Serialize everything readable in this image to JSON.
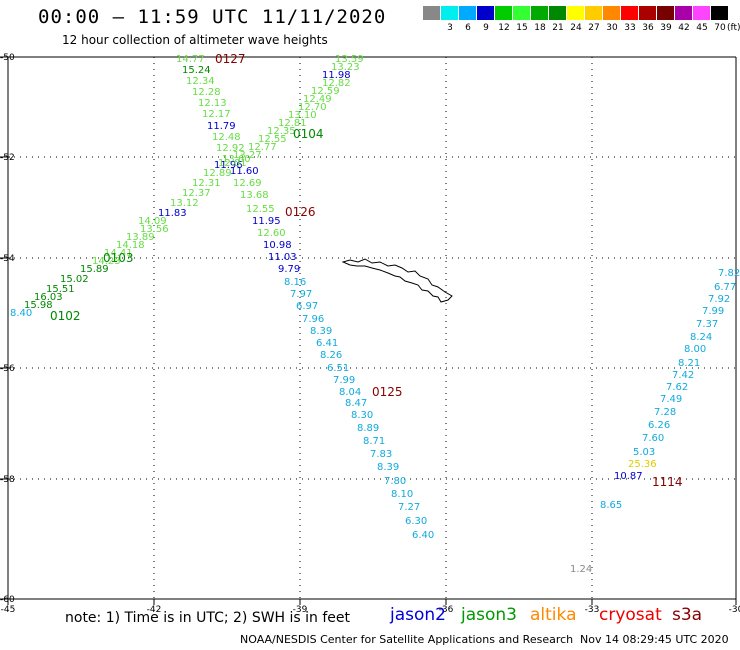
{
  "header": {
    "title": "00:00 — 11:59 UTC 11/11/2020",
    "subtitle": "12 hour collection of altimeter wave heights"
  },
  "legend": {
    "unit": "(ft)",
    "bins": [
      {
        "label": "",
        "color": "#888888"
      },
      {
        "label": "3",
        "color": "#00eeee"
      },
      {
        "label": "6",
        "color": "#00aaff"
      },
      {
        "label": "9",
        "color": "#0000cc"
      },
      {
        "label": "12",
        "color": "#00cc00"
      },
      {
        "label": "15",
        "color": "#33ff33"
      },
      {
        "label": "18",
        "color": "#00aa00"
      },
      {
        "label": "21",
        "color": "#008800"
      },
      {
        "label": "24",
        "color": "#ffff00"
      },
      {
        "label": "27",
        "color": "#ffcc00"
      },
      {
        "label": "30",
        "color": "#ff8800"
      },
      {
        "label": "33",
        "color": "#ff0000"
      },
      {
        "label": "36",
        "color": "#aa0000"
      },
      {
        "label": "39",
        "color": "#770000"
      },
      {
        "label": "42",
        "color": "#aa00aa"
      },
      {
        "label": "45",
        "color": "#ff44ff"
      },
      {
        "label": "70",
        "color": "#000000"
      }
    ]
  },
  "axes": {
    "lat_labels": [
      "-50",
      "-52",
      "-54",
      "-56",
      "-58",
      "-60"
    ],
    "lon_labels": [
      "-45",
      "-42",
      "-39",
      "-36",
      "-33",
      "-30"
    ]
  },
  "colors": {
    "lightgreen": "#66dd44",
    "green": "#008800",
    "blue": "#0000cc",
    "cyan": "#11aadd",
    "maroon": "#880000",
    "yellow": "#ddcc00",
    "grey": "#888888"
  },
  "passes": [
    {
      "label": "0127",
      "color": "#880000"
    },
    {
      "label": "0104",
      "color": "#008800"
    },
    {
      "label": "0126",
      "color": "#880000"
    },
    {
      "label": "0103",
      "color": "#008800"
    },
    {
      "label": "0102",
      "color": "#008800"
    },
    {
      "label": "0125",
      "color": "#880000"
    },
    {
      "label": "1114",
      "color": "#880000"
    }
  ],
  "readings": [
    {
      "v": "14.77",
      "c": "lightgreen"
    },
    {
      "v": "15.24",
      "c": "green"
    },
    {
      "v": "12.34",
      "c": "lightgreen"
    },
    {
      "v": "12.28",
      "c": "lightgreen"
    },
    {
      "v": "12.13",
      "c": "lightgreen"
    },
    {
      "v": "12.17",
      "c": "lightgreen"
    },
    {
      "v": "11.79",
      "c": "blue"
    },
    {
      "v": "12.48",
      "c": "lightgreen"
    },
    {
      "v": "12.92",
      "c": "lightgreen"
    },
    {
      "v": "13.60",
      "c": "lightgreen"
    },
    {
      "v": "11.96",
      "c": "blue"
    },
    {
      "v": "11.60",
      "c": "blue"
    },
    {
      "v": "12.69",
      "c": "lightgreen"
    },
    {
      "v": "13.68",
      "c": "lightgreen"
    },
    {
      "v": "12.55",
      "c": "lightgreen"
    },
    {
      "v": "11.95",
      "c": "blue"
    },
    {
      "v": "12.60",
      "c": "lightgreen"
    },
    {
      "v": "10.98",
      "c": "blue"
    },
    {
      "v": "11.03",
      "c": "blue"
    },
    {
      "v": "9.79",
      "c": "blue"
    },
    {
      "v": "8.16",
      "c": "cyan"
    },
    {
      "v": "7.97",
      "c": "cyan"
    },
    {
      "v": "6.97",
      "c": "cyan"
    },
    {
      "v": "7.96",
      "c": "cyan"
    },
    {
      "v": "8.39",
      "c": "cyan"
    },
    {
      "v": "6.41",
      "c": "cyan"
    },
    {
      "v": "8.26",
      "c": "cyan"
    },
    {
      "v": "6.51",
      "c": "cyan"
    },
    {
      "v": "7.99",
      "c": "cyan"
    },
    {
      "v": "8.04",
      "c": "cyan"
    },
    {
      "v": "8.47",
      "c": "cyan"
    },
    {
      "v": "8.30",
      "c": "cyan"
    },
    {
      "v": "8.89",
      "c": "cyan"
    },
    {
      "v": "8.71",
      "c": "cyan"
    },
    {
      "v": "7.83",
      "c": "cyan"
    },
    {
      "v": "8.39",
      "c": "cyan"
    },
    {
      "v": "7.80",
      "c": "cyan"
    },
    {
      "v": "8.10",
      "c": "cyan"
    },
    {
      "v": "7.27",
      "c": "cyan"
    },
    {
      "v": "6.30",
      "c": "cyan"
    },
    {
      "v": "6.40",
      "c": "cyan"
    },
    {
      "v": "13.59",
      "c": "lightgreen"
    },
    {
      "v": "13.23",
      "c": "lightgreen"
    },
    {
      "v": "11.98",
      "c": "blue"
    },
    {
      "v": "12.82",
      "c": "lightgreen"
    },
    {
      "v": "12.59",
      "c": "lightgreen"
    },
    {
      "v": "12.49",
      "c": "lightgreen"
    },
    {
      "v": "12.70",
      "c": "lightgreen"
    },
    {
      "v": "13.10",
      "c": "lightgreen"
    },
    {
      "v": "12.81",
      "c": "lightgreen"
    },
    {
      "v": "12.35",
      "c": "lightgreen"
    },
    {
      "v": "12.55",
      "c": "lightgreen"
    },
    {
      "v": "12.77",
      "c": "lightgreen"
    },
    {
      "v": "13.27",
      "c": "lightgreen"
    },
    {
      "v": "12.01",
      "c": "lightgreen"
    },
    {
      "v": "12.89",
      "c": "lightgreen"
    },
    {
      "v": "12.31",
      "c": "lightgreen"
    },
    {
      "v": "12.37",
      "c": "lightgreen"
    },
    {
      "v": "13.12",
      "c": "lightgreen"
    },
    {
      "v": "11.83",
      "c": "blue"
    },
    {
      "v": "14.09",
      "c": "lightgreen"
    },
    {
      "v": "13.56",
      "c": "lightgreen"
    },
    {
      "v": "13.89",
      "c": "lightgreen"
    },
    {
      "v": "14.18",
      "c": "lightgreen"
    },
    {
      "v": "14.41",
      "c": "lightgreen"
    },
    {
      "v": "14.23",
      "c": "lightgreen"
    },
    {
      "v": "15.89",
      "c": "green"
    },
    {
      "v": "15.02",
      "c": "green"
    },
    {
      "v": "15.51",
      "c": "green"
    },
    {
      "v": "16.03",
      "c": "green"
    },
    {
      "v": "15.98",
      "c": "green"
    },
    {
      "v": "8.40",
      "c": "cyan"
    },
    {
      "v": "7.82",
      "c": "cyan"
    },
    {
      "v": "6.77",
      "c": "cyan"
    },
    {
      "v": "7.92",
      "c": "cyan"
    },
    {
      "v": "7.99",
      "c": "cyan"
    },
    {
      "v": "7.37",
      "c": "cyan"
    },
    {
      "v": "8.24",
      "c": "cyan"
    },
    {
      "v": "8.00",
      "c": "cyan"
    },
    {
      "v": "8.21",
      "c": "cyan"
    },
    {
      "v": "7.42",
      "c": "cyan"
    },
    {
      "v": "7.62",
      "c": "cyan"
    },
    {
      "v": "7.49",
      "c": "cyan"
    },
    {
      "v": "7.28",
      "c": "cyan"
    },
    {
      "v": "6.26",
      "c": "cyan"
    },
    {
      "v": "7.60",
      "c": "cyan"
    },
    {
      "v": "5.03",
      "c": "cyan"
    },
    {
      "v": "25.36",
      "c": "yellow"
    },
    {
      "v": "10.87",
      "c": "blue"
    },
    {
      "v": "8.65",
      "c": "cyan"
    },
    {
      "v": "1.24",
      "c": "grey"
    }
  ],
  "footer": {
    "note": "note: 1) Time is in UTC; 2) SWH is in feet",
    "satellites": [
      {
        "name": "jason2",
        "color": "#0000dd"
      },
      {
        "name": "jason3",
        "color": "#009900"
      },
      {
        "name": "altika",
        "color": "#ff8800"
      },
      {
        "name": "cryosat",
        "color": "#ee0000"
      },
      {
        "name": "s3a",
        "color": "#880000"
      }
    ],
    "credit": "NOAA/NESDIS Center for Satellite Applications and Research",
    "timestamp": "Nov 14 08:29:45 UTC 2020"
  }
}
